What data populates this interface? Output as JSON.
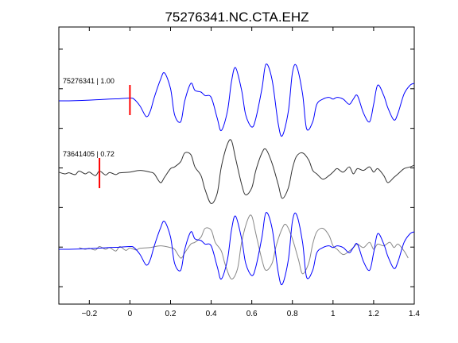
{
  "chart_data": {
    "type": "line",
    "title": "75276341.NC.CTA.EHZ",
    "xlabel": "",
    "ylabel": "",
    "xlim": [
      -0.35,
      1.4
    ],
    "x_ticks": [
      -0.2,
      0,
      0.2,
      0.4,
      0.6,
      0.8,
      1,
      1.2,
      1.4
    ],
    "x_tick_labels": [
      "−0.2",
      "0",
      "0.2",
      "0.4",
      "0.6",
      "0.8",
      "1",
      "1.2",
      "1.4"
    ],
    "y_tick_count": 7,
    "grid": false,
    "legend": "none",
    "traces": [
      {
        "label": "75276341 | 1.00",
        "color": "#0000ff",
        "pick_time": 0.0,
        "pick_color": "#ff0000",
        "x": [
          -0.35,
          -0.3,
          -0.2,
          -0.1,
          -0.05,
          0.0,
          0.02,
          0.05,
          0.08,
          0.1,
          0.12,
          0.15,
          0.17,
          0.2,
          0.22,
          0.25,
          0.27,
          0.3,
          0.32,
          0.35,
          0.37,
          0.4,
          0.43,
          0.45,
          0.48,
          0.5,
          0.52,
          0.55,
          0.57,
          0.6,
          0.62,
          0.65,
          0.67,
          0.7,
          0.73,
          0.75,
          0.78,
          0.8,
          0.82,
          0.85,
          0.87,
          0.9,
          0.92,
          0.95,
          0.98,
          1.0,
          1.02,
          1.05,
          1.08,
          1.1,
          1.12,
          1.15,
          1.18,
          1.2,
          1.22,
          1.25,
          1.27,
          1.3,
          1.32,
          1.35,
          1.38,
          1.4
        ],
        "y": [
          0.0,
          0.0,
          0.02,
          0.05,
          0.06,
          0.08,
          0.05,
          -0.15,
          -0.45,
          -0.3,
          0.1,
          0.6,
          0.8,
          0.35,
          -0.4,
          -0.6,
          0.0,
          0.5,
          0.3,
          0.25,
          0.15,
          0.1,
          -0.5,
          -0.85,
          -0.3,
          0.55,
          0.95,
          0.3,
          -0.4,
          -0.75,
          -0.5,
          0.35,
          1.05,
          0.6,
          -0.65,
          -1.0,
          -0.3,
          0.8,
          1.0,
          0.2,
          -0.8,
          -0.6,
          -0.1,
          0.05,
          0.1,
          0.05,
          0.1,
          0.05,
          -0.1,
          0.05,
          0.15,
          -0.35,
          -0.6,
          -0.1,
          0.45,
          0.15,
          -0.2,
          -0.55,
          -0.35,
          0.2,
          0.45,
          0.5
        ]
      },
      {
        "label": "73641405 | 0.72",
        "color": "#333333",
        "pick_time": -0.15,
        "pick_color": "#ff0000",
        "x": [
          -0.35,
          -0.32,
          -0.3,
          -0.27,
          -0.25,
          -0.22,
          -0.2,
          -0.17,
          -0.15,
          -0.12,
          -0.1,
          -0.07,
          -0.05,
          0.0,
          0.05,
          0.1,
          0.12,
          0.15,
          0.17,
          0.2,
          0.22,
          0.25,
          0.27,
          0.3,
          0.32,
          0.35,
          0.37,
          0.4,
          0.43,
          0.45,
          0.48,
          0.5,
          0.52,
          0.55,
          0.57,
          0.6,
          0.62,
          0.65,
          0.67,
          0.7,
          0.73,
          0.75,
          0.78,
          0.8,
          0.82,
          0.85,
          0.88,
          0.9,
          0.92,
          0.95,
          0.98,
          1.0,
          1.02,
          1.05,
          1.08,
          1.1,
          1.12,
          1.15,
          1.18,
          1.2,
          1.22,
          1.25,
          1.27,
          1.3,
          1.32,
          1.35,
          1.38,
          1.4
        ],
        "y": [
          0.05,
          0.0,
          0.03,
          -0.02,
          0.08,
          0.0,
          0.05,
          -0.05,
          0.08,
          -0.03,
          0.04,
          -0.02,
          0.03,
          0.05,
          0.1,
          0.05,
          0.0,
          -0.25,
          -0.1,
          0.15,
          0.2,
          0.35,
          0.6,
          0.55,
          0.2,
          -0.05,
          -0.45,
          -0.85,
          -0.55,
          0.2,
          0.85,
          0.95,
          0.45,
          -0.3,
          -0.6,
          -0.4,
          0.1,
          0.6,
          0.7,
          0.3,
          -0.3,
          -0.7,
          -0.4,
          0.15,
          0.5,
          0.6,
          0.4,
          0.1,
          0.0,
          -0.15,
          -0.05,
          0.05,
          0.15,
          0.05,
          0.2,
          0.0,
          0.15,
          0.1,
          0.2,
          0.05,
          0.15,
          -0.05,
          -0.25,
          -0.1,
          0.0,
          0.15,
          0.2,
          0.25
        ]
      },
      {
        "label": "",
        "overlay": true,
        "color": "#0000ff",
        "secondary_color": "#888888",
        "note_secondary_series": "scaled copy of trace 2 overlaid on trace 1",
        "source_trace": 0,
        "secondary_trace": 1
      }
    ]
  }
}
